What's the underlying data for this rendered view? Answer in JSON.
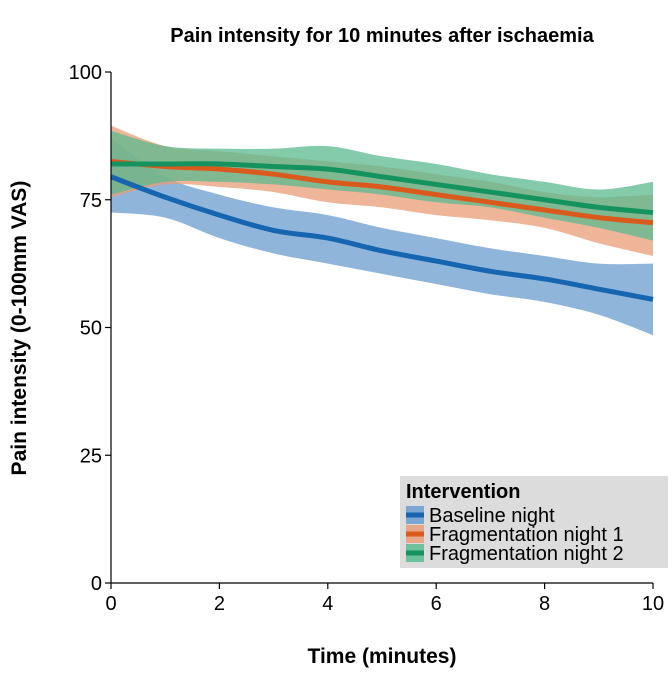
{
  "chart_data": {
    "type": "line",
    "title": "Pain intensity for 10 minutes after ischaemia",
    "xlabel": "Time (minutes)",
    "ylabel": "Pain intensity (0-100mm VAS)",
    "xlim": [
      0,
      10
    ],
    "ylim": [
      0,
      100
    ],
    "x_ticks": [
      0,
      2,
      4,
      6,
      8,
      10
    ],
    "y_ticks": [
      0,
      25,
      50,
      75,
      100
    ],
    "grid": false,
    "legend": {
      "title": "Intervention",
      "position": "bottom-right"
    },
    "x": [
      0,
      1,
      2,
      3,
      4,
      5,
      6,
      7,
      8,
      9,
      10
    ],
    "series": [
      {
        "name": "Baseline night",
        "color": "#1565b0",
        "band_color": "#6a9ccf",
        "values": [
          79.5,
          75.5,
          72,
          69,
          67.5,
          65,
          63,
          61,
          59.5,
          57.5,
          55.5
        ],
        "lower": [
          72.5,
          71.5,
          67.5,
          64.5,
          62.5,
          60.5,
          58.5,
          56.5,
          55,
          52.5,
          48.5
        ],
        "upper": [
          87,
          79.5,
          76,
          73.5,
          72,
          69.5,
          67.5,
          65.5,
          64,
          62.5,
          62.5
        ]
      },
      {
        "name": "Fragmentation night 1",
        "color": "#d95a1c",
        "band_color": "#e99c76",
        "values": [
          82.5,
          81.5,
          81,
          80,
          78.5,
          77.5,
          76,
          74.5,
          73,
          71.5,
          70.5
        ],
        "lower": [
          75.5,
          78,
          77.5,
          76.5,
          74.5,
          73.5,
          72,
          71,
          69.5,
          66.5,
          64
        ],
        "upper": [
          89.5,
          85.5,
          84.5,
          83.5,
          82.5,
          81.5,
          80,
          78.5,
          76.5,
          75.5,
          76
        ]
      },
      {
        "name": "Fragmentation night 2",
        "color": "#15935e",
        "band_color": "#5bba90",
        "values": [
          82,
          82,
          82,
          81.5,
          81,
          79.5,
          78,
          76.5,
          75,
          73.5,
          72.5
        ],
        "lower": [
          76,
          78.5,
          78.5,
          78,
          77,
          76,
          74.5,
          73.5,
          71.5,
          69.5,
          67
        ],
        "upper": [
          88.5,
          85.5,
          85,
          85,
          85.5,
          83.5,
          82,
          80,
          78.5,
          77,
          78.5
        ]
      }
    ]
  }
}
